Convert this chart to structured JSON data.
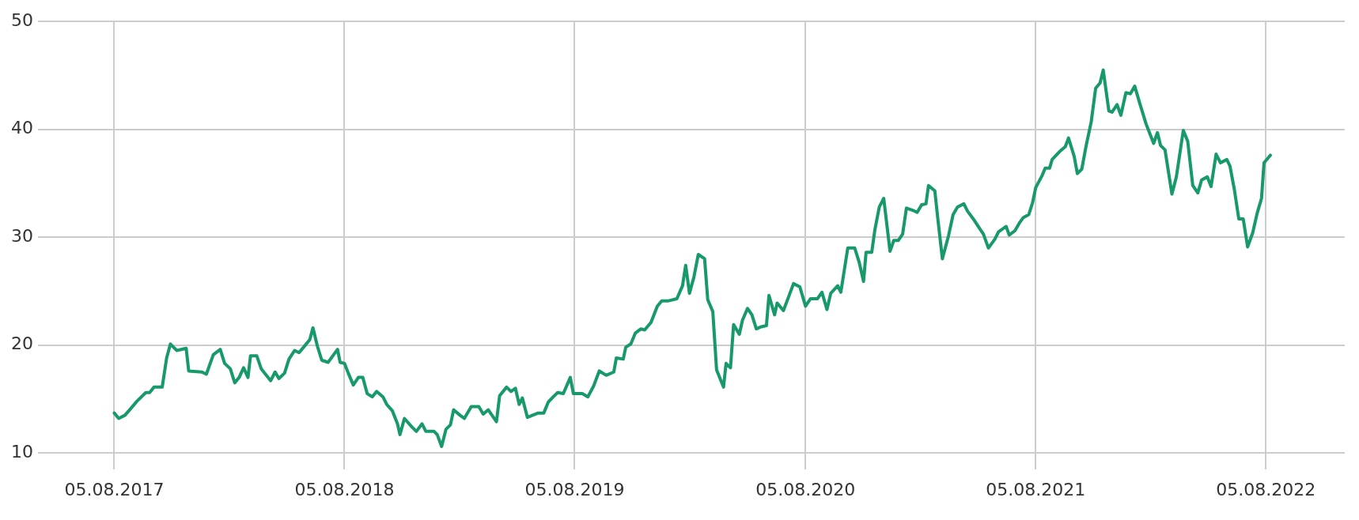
{
  "chart_data": {
    "type": "line",
    "x": [
      "2017-08-05",
      "2017-08-12",
      "2017-08-22",
      "2017-08-28",
      "2017-09-10",
      "2017-09-24",
      "2017-09-30",
      "2017-10-07",
      "2017-10-20",
      "2017-10-27",
      "2017-11-02",
      "2017-11-12",
      "2017-11-27",
      "2017-12-01",
      "2017-12-22",
      "2017-12-29",
      "2018-01-09",
      "2018-01-20",
      "2018-01-27",
      "2018-02-05",
      "2018-02-12",
      "2018-02-19",
      "2018-02-26",
      "2018-03-05",
      "2018-03-09",
      "2018-03-19",
      "2018-03-26",
      "2018-04-10",
      "2018-04-17",
      "2018-04-23",
      "2018-05-02",
      "2018-05-09",
      "2018-05-18",
      "2018-05-25",
      "2018-06-04",
      "2018-06-11",
      "2018-06-16",
      "2018-06-23",
      "2018-06-30",
      "2018-07-10",
      "2018-07-25",
      "2018-07-29",
      "2018-08-05",
      "2018-08-11",
      "2018-08-19",
      "2018-08-27",
      "2018-09-03",
      "2018-09-10",
      "2018-09-18",
      "2018-09-25",
      "2018-10-05",
      "2018-10-11",
      "2018-10-20",
      "2018-10-28",
      "2018-11-01",
      "2018-11-08",
      "2018-11-20",
      "2018-11-27",
      "2018-12-06",
      "2018-12-12",
      "2018-12-25",
      "2018-12-30",
      "2019-01-06",
      "2019-01-13",
      "2019-01-20",
      "2019-01-25",
      "2019-02-04",
      "2019-02-11",
      "2019-02-22",
      "2019-03-06",
      "2019-03-13",
      "2019-03-21",
      "2019-04-03",
      "2019-04-08",
      "2019-04-19",
      "2019-04-26",
      "2019-05-03",
      "2019-05-09",
      "2019-05-14",
      "2019-05-22",
      "2019-06-08",
      "2019-06-17",
      "2019-06-24",
      "2019-07-02",
      "2019-07-09",
      "2019-07-18",
      "2019-07-29",
      "2019-08-03",
      "2019-08-17",
      "2019-08-26",
      "2019-09-04",
      "2019-09-13",
      "2019-09-24",
      "2019-10-06",
      "2019-10-10",
      "2019-10-21",
      "2019-10-25",
      "2019-11-02",
      "2019-11-09",
      "2019-11-18",
      "2019-11-24",
      "2019-12-04",
      "2019-12-14",
      "2019-12-21",
      "2020-01-01",
      "2020-01-14",
      "2020-01-23",
      "2020-01-28",
      "2020-02-03",
      "2020-02-10",
      "2020-02-17",
      "2020-02-27",
      "2020-03-03",
      "2020-03-11",
      "2020-03-17",
      "2020-03-28",
      "2020-04-01",
      "2020-04-08",
      "2020-04-13",
      "2020-04-22",
      "2020-04-27",
      "2020-05-05",
      "2020-05-12",
      "2020-05-19",
      "2020-05-27",
      "2020-06-04",
      "2020-06-08",
      "2020-06-17",
      "2020-06-21",
      "2020-07-01",
      "2020-07-10",
      "2020-07-17",
      "2020-07-27",
      "2020-08-05",
      "2020-08-13",
      "2020-08-24",
      "2020-08-31",
      "2020-09-08",
      "2020-09-14",
      "2020-09-25",
      "2020-09-30",
      "2020-10-11",
      "2020-10-22",
      "2020-10-29",
      "2020-11-05",
      "2020-11-09",
      "2020-11-18",
      "2020-11-23",
      "2020-11-30",
      "2020-12-07",
      "2020-12-17",
      "2020-12-23",
      "2020-12-30",
      "2021-01-06",
      "2021-01-12",
      "2021-01-22",
      "2021-01-29",
      "2021-02-05",
      "2021-02-12",
      "2021-02-16",
      "2021-02-26",
      "2021-03-03",
      "2021-03-10",
      "2021-03-20",
      "2021-03-27",
      "2021-04-03",
      "2021-04-13",
      "2021-04-19",
      "2021-04-28",
      "2021-05-07",
      "2021-05-14",
      "2021-05-22",
      "2021-06-01",
      "2021-06-07",
      "2021-06-19",
      "2021-06-24",
      "2021-07-03",
      "2021-07-11",
      "2021-07-16",
      "2021-07-25",
      "2021-07-31",
      "2021-08-05",
      "2021-08-15",
      "2021-08-20",
      "2021-08-27",
      "2021-08-31",
      "2021-09-13",
      "2021-09-21",
      "2021-09-26",
      "2021-10-05",
      "2021-10-10",
      "2021-10-17",
      "2021-10-24",
      "2021-11-01",
      "2021-11-08",
      "2021-11-15",
      "2021-11-20",
      "2021-11-29",
      "2021-12-04",
      "2021-12-12",
      "2021-12-18",
      "2021-12-26",
      "2022-01-02",
      "2022-01-09",
      "2022-01-17",
      "2022-01-27",
      "2022-02-08",
      "2022-02-14",
      "2022-02-19",
      "2022-02-26",
      "2022-03-09",
      "2022-03-16",
      "2022-03-27",
      "2022-04-03",
      "2022-04-11",
      "2022-04-19",
      "2022-04-25",
      "2022-05-04",
      "2022-05-10",
      "2022-05-18",
      "2022-05-25",
      "2022-06-04",
      "2022-06-09",
      "2022-06-16",
      "2022-06-23",
      "2022-06-30",
      "2022-07-07",
      "2022-07-15",
      "2022-07-22",
      "2022-07-29",
      "2022-08-02",
      "2022-08-12"
    ],
    "values": [
      13.7,
      13.2,
      13.5,
      13.9,
      14.8,
      15.6,
      15.6,
      16.1,
      16.1,
      18.8,
      20.1,
      19.5,
      19.7,
      17.6,
      17.5,
      17.3,
      19.1,
      19.6,
      18.3,
      17.8,
      16.5,
      17.0,
      17.9,
      17.0,
      19.0,
      19.0,
      17.8,
      16.7,
      17.5,
      16.9,
      17.4,
      18.7,
      19.5,
      19.3,
      20.0,
      20.5,
      21.6,
      19.9,
      18.6,
      18.4,
      19.6,
      18.4,
      18.3,
      17.4,
      16.3,
      17.0,
      17.0,
      15.5,
      15.2,
      15.7,
      15.2,
      14.5,
      13.9,
      12.7,
      11.7,
      13.2,
      12.4,
      12.0,
      12.7,
      12.0,
      12.0,
      11.7,
      10.6,
      12.2,
      12.6,
      14.0,
      13.5,
      13.2,
      14.3,
      14.3,
      13.6,
      14.0,
      12.9,
      15.3,
      16.1,
      15.7,
      16.0,
      14.5,
      15.1,
      13.3,
      13.7,
      13.7,
      14.7,
      15.2,
      15.6,
      15.5,
      17.0,
      15.5,
      15.5,
      15.2,
      16.2,
      17.6,
      17.2,
      17.5,
      18.8,
      18.7,
      19.8,
      20.1,
      21.1,
      21.5,
      21.4,
      22.1,
      23.6,
      24.1,
      24.1,
      24.3,
      25.5,
      27.4,
      24.8,
      26.3,
      28.4,
      28.0,
      24.2,
      23.1,
      17.7,
      16.1,
      18.3,
      17.9,
      21.9,
      21.0,
      22.3,
      23.4,
      22.8,
      21.5,
      21.7,
      21.8,
      24.6,
      22.8,
      23.9,
      23.2,
      24.6,
      25.7,
      25.4,
      23.6,
      24.3,
      24.3,
      24.9,
      23.3,
      24.8,
      25.5,
      24.9,
      29.0,
      29.0,
      27.7,
      25.9,
      28.6,
      28.6,
      30.7,
      32.8,
      33.6,
      28.7,
      29.7,
      29.7,
      30.3,
      32.7,
      32.5,
      32.3,
      33.0,
      33.1,
      34.8,
      34.3,
      31.6,
      28.0,
      30.2,
      32.1,
      32.8,
      33.1,
      32.4,
      31.7,
      30.9,
      30.3,
      29.0,
      29.8,
      30.5,
      31.0,
      30.2,
      30.6,
      31.4,
      31.8,
      32.1,
      33.2,
      34.6,
      35.7,
      36.4,
      36.4,
      37.2,
      38.0,
      38.4,
      39.2,
      37.5,
      35.9,
      36.3,
      38.5,
      40.7,
      43.8,
      44.3,
      45.5,
      41.7,
      41.6,
      42.3,
      41.3,
      43.4,
      43.3,
      44.0,
      42.4,
      40.5,
      38.7,
      39.7,
      38.5,
      38.1,
      34.0,
      35.6,
      39.9,
      38.9,
      34.8,
      34.1,
      35.3,
      35.6,
      34.7,
      37.7,
      36.9,
      37.2,
      36.6,
      34.4,
      31.7,
      31.7,
      29.1,
      30.4,
      32.2,
      33.6,
      36.9,
      37.6
    ],
    "color": "#17996a",
    "xlim": [
      "2017-04-06",
      "2022-12-08"
    ],
    "xticks": [
      {
        "value": "2017-08-05",
        "label": "05.08.2017"
      },
      {
        "value": "2018-08-05",
        "label": "05.08.2018"
      },
      {
        "value": "2019-08-05",
        "label": "05.08.2019"
      },
      {
        "value": "2020-08-05",
        "label": "05.08.2020"
      },
      {
        "value": "2021-08-05",
        "label": "05.08.2021"
      },
      {
        "value": "2022-08-05",
        "label": "05.08.2022"
      }
    ],
    "ylim": [
      8.5,
      50
    ],
    "yticks": [
      10,
      20,
      30,
      40,
      50
    ],
    "grid": true,
    "marker": "none",
    "line_style": "solid"
  }
}
